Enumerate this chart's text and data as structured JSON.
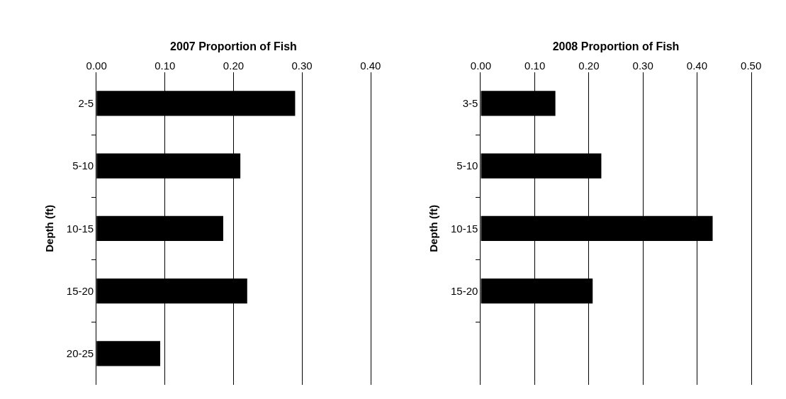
{
  "chart_data": [
    {
      "type": "bar",
      "orientation": "horizontal",
      "title": "2007 Proportion of Fish",
      "ylabel": "Depth (ft)",
      "categories": [
        "2-5",
        "5-10",
        "10-15",
        "15-20",
        "20-25"
      ],
      "values": [
        0.29,
        0.21,
        0.185,
        0.22,
        0.093
      ],
      "color": "#000000",
      "xlim": [
        0,
        0.4
      ],
      "xticks": [
        {
          "value": 0,
          "label": "0.00"
        },
        {
          "value": 0.1,
          "label": "0.10"
        },
        {
          "value": 0.2,
          "label": "0.20"
        },
        {
          "value": 0.3,
          "label": "0.30"
        },
        {
          "value": 0.4,
          "label": "0.40"
        }
      ],
      "grid": "x"
    },
    {
      "type": "bar",
      "orientation": "horizontal",
      "title": "2008 Proportion of Fish",
      "ylabel": "Depth (ft)",
      "categories": [
        "3-5",
        "5-10",
        "10-15",
        "15-20",
        null
      ],
      "values": [
        0.138,
        0.223,
        0.429,
        0.207,
        null
      ],
      "color": "#000000",
      "xlim": [
        0,
        0.5
      ],
      "xticks": [
        {
          "value": 0,
          "label": "0.00"
        },
        {
          "value": 0.1,
          "label": "0.10"
        },
        {
          "value": 0.2,
          "label": "0.20"
        },
        {
          "value": 0.3,
          "label": "0.30"
        },
        {
          "value": 0.4,
          "label": "0.40"
        },
        {
          "value": 0.5,
          "label": "0.50"
        }
      ],
      "grid": "x"
    }
  ]
}
